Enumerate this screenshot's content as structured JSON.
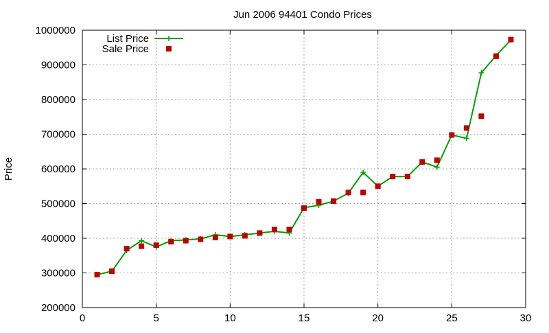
{
  "chart_data": {
    "type": "line",
    "title": "Jun 2006 94401 Condo Prices",
    "xlabel": "",
    "ylabel": "Price",
    "xlim": [
      0,
      30
    ],
    "ylim": [
      200000,
      1000000
    ],
    "xticks": [
      0,
      5,
      10,
      15,
      20,
      25,
      30
    ],
    "yticks": [
      200000,
      300000,
      400000,
      500000,
      600000,
      700000,
      800000,
      900000,
      1000000
    ],
    "grid": true,
    "legend_position": "top-left",
    "series": [
      {
        "name": "List Price",
        "style": "line-with-plus-markers",
        "color": "#00a000",
        "x": [
          1,
          2,
          3,
          4,
          5,
          6,
          7,
          8,
          9,
          10,
          11,
          12,
          13,
          14,
          15,
          16,
          17,
          18,
          19,
          20,
          21,
          22,
          23,
          24,
          25,
          26,
          27,
          28,
          29
        ],
        "values": [
          295000,
          305000,
          365000,
          393000,
          375000,
          393000,
          395000,
          398000,
          410000,
          405000,
          410000,
          415000,
          420000,
          415000,
          488000,
          495000,
          507000,
          530000,
          590000,
          550000,
          578000,
          578000,
          620000,
          605000,
          698000,
          688000,
          877000,
          927000,
          972000
        ]
      },
      {
        "name": "Sale Price",
        "style": "square-markers",
        "color": "#c00000",
        "x": [
          1,
          2,
          3,
          4,
          5,
          6,
          7,
          8,
          9,
          10,
          11,
          12,
          13,
          14,
          15,
          16,
          17,
          18,
          19,
          20,
          21,
          22,
          23,
          24,
          25,
          26,
          27,
          28,
          29
        ],
        "values": [
          295000,
          305000,
          370000,
          377000,
          380000,
          390000,
          393000,
          397000,
          402000,
          405000,
          407000,
          415000,
          425000,
          425000,
          487000,
          505000,
          507000,
          532000,
          532000,
          550000,
          578000,
          578000,
          620000,
          625000,
          698000,
          718000,
          752000,
          925000,
          973000
        ]
      }
    ]
  }
}
